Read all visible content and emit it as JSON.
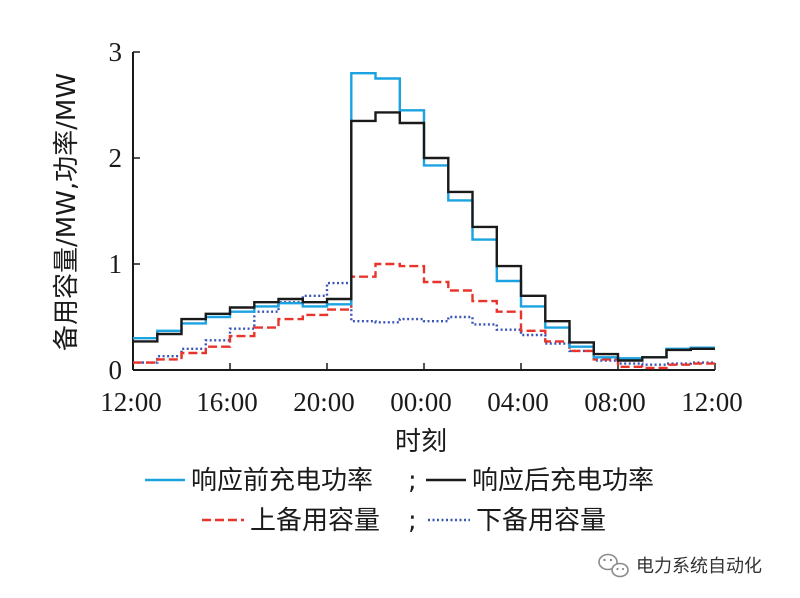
{
  "chart_data": {
    "type": "line",
    "xlabel": "时刻",
    "ylabel": "备用容量/MW,功率/MW",
    "x_ticks": [
      "12:00",
      "16:00",
      "20:00",
      "00:00",
      "04:00",
      "08:00",
      "12:00"
    ],
    "y_ticks": [
      "0",
      "1",
      "2",
      "3"
    ],
    "ylim": [
      0,
      3
    ],
    "x_range_hours": [
      0,
      24
    ],
    "step_hours": 1,
    "series": [
      {
        "name": "响应前充电功率",
        "color": "#1aa3e0",
        "dash": "solid",
        "values": [
          0.3,
          0.37,
          0.44,
          0.5,
          0.55,
          0.6,
          0.63,
          0.6,
          0.62,
          2.8,
          2.75,
          2.45,
          1.93,
          1.6,
          1.23,
          0.84,
          0.6,
          0.4,
          0.22,
          0.12,
          0.11,
          0.12,
          0.2,
          0.21
        ]
      },
      {
        "name": "响应后充电功率",
        "color": "#1a1a1a",
        "dash": "solid",
        "values": [
          0.27,
          0.34,
          0.48,
          0.53,
          0.59,
          0.64,
          0.67,
          0.64,
          0.67,
          2.35,
          2.43,
          2.33,
          2.0,
          1.68,
          1.35,
          0.98,
          0.7,
          0.46,
          0.26,
          0.15,
          0.09,
          0.12,
          0.19,
          0.2
        ]
      },
      {
        "name": "上备用容量",
        "color": "#e8352c",
        "dash": "dashed",
        "values": [
          0.07,
          0.1,
          0.16,
          0.22,
          0.32,
          0.4,
          0.48,
          0.52,
          0.57,
          0.88,
          1.0,
          0.98,
          0.83,
          0.75,
          0.65,
          0.55,
          0.37,
          0.27,
          0.18,
          0.1,
          0.03,
          0.02,
          0.05,
          0.06
        ]
      },
      {
        "name": "下备用容量",
        "color": "#3a55b8",
        "dash": "dotted",
        "values": [
          0.07,
          0.13,
          0.2,
          0.28,
          0.39,
          0.55,
          0.64,
          0.7,
          0.82,
          0.46,
          0.45,
          0.48,
          0.46,
          0.5,
          0.43,
          0.38,
          0.33,
          0.25,
          0.18,
          0.09,
          0.06,
          0.05,
          0.06,
          0.07
        ]
      }
    ],
    "legend": {
      "placement": "bottom",
      "separator": ";"
    }
  },
  "watermark": {
    "icon": "wechat-icon",
    "text": "电力系统自动化"
  }
}
